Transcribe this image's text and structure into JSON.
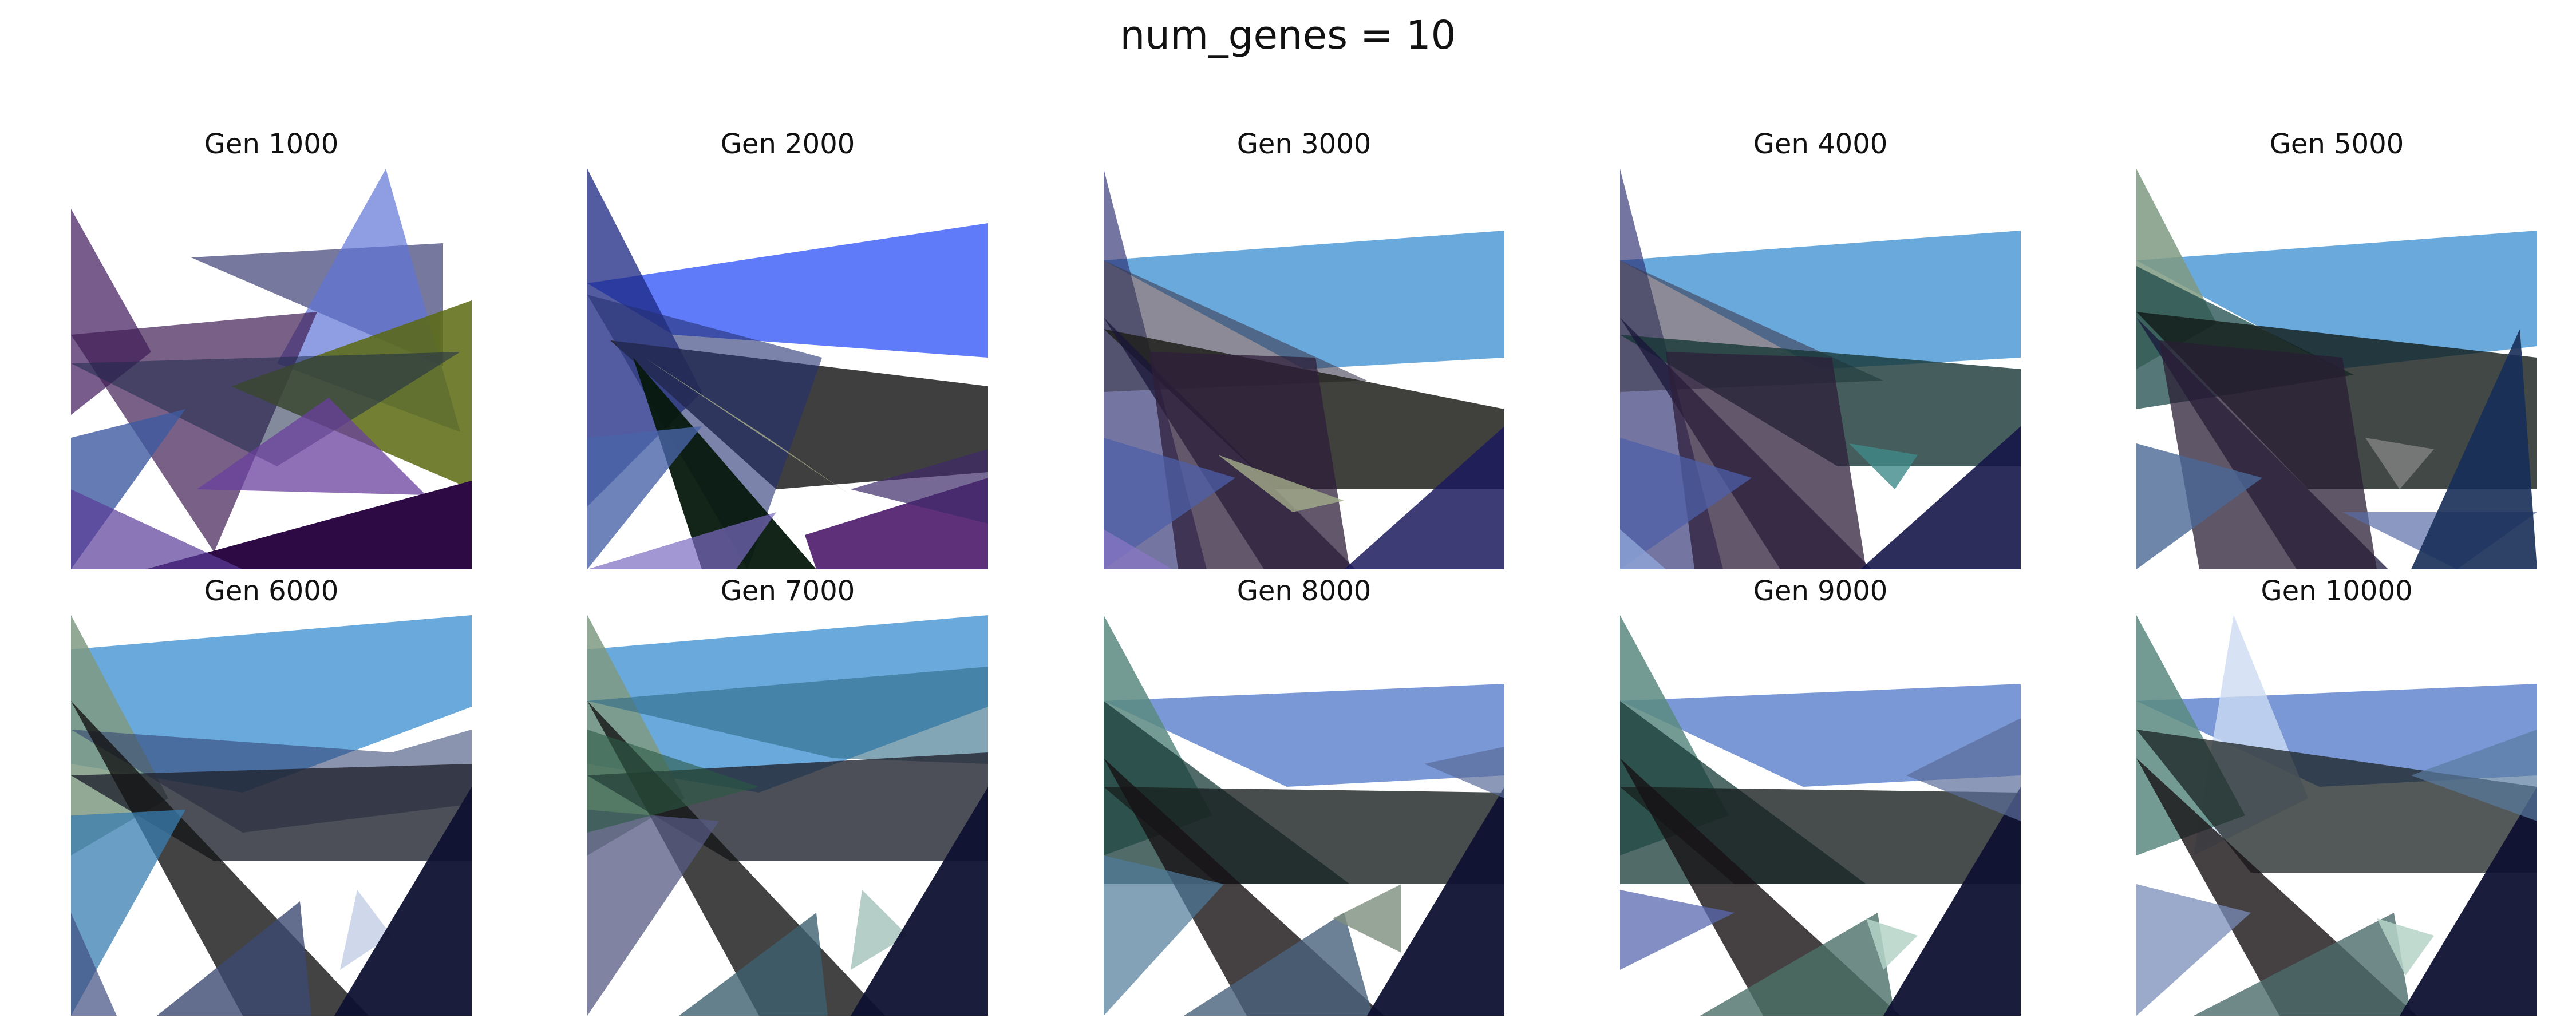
{
  "figure": {
    "suptitle": "num_genes = 10",
    "panels": [
      {
        "title": "Gen 1000"
      },
      {
        "title": "Gen 2000"
      },
      {
        "title": "Gen 3000"
      },
      {
        "title": "Gen 4000"
      },
      {
        "title": "Gen 5000"
      },
      {
        "title": "Gen 6000"
      },
      {
        "title": "Gen 7000"
      },
      {
        "title": "Gen 8000"
      },
      {
        "title": "Gen 9000"
      },
      {
        "title": "Gen 10000"
      }
    ]
  }
}
